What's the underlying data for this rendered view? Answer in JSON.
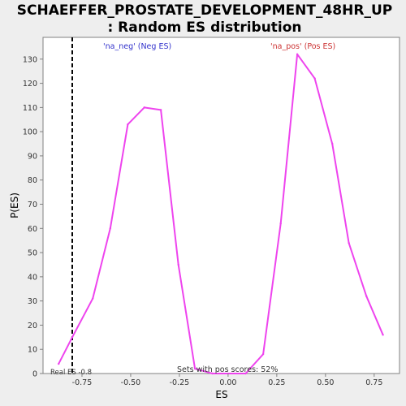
{
  "chart_data": {
    "type": "line",
    "title": "SCHAEFFER_PROSTATE_DEVELOPMENT_48HR_UP",
    "subtitle": ": Random ES distribution",
    "xlabel": "ES",
    "ylabel": "P(ES)",
    "xlim": [
      -0.95,
      0.88
    ],
    "ylim": [
      0,
      139
    ],
    "x_ticks": [
      -0.75,
      -0.5,
      -0.25,
      0.0,
      0.25,
      0.5,
      0.75
    ],
    "x_tick_labels": [
      "-0.75",
      "-0.50",
      "-0.25",
      "0.00",
      "0.25",
      "0.50",
      "0.75"
    ],
    "y_ticks": [
      0,
      10,
      20,
      30,
      40,
      50,
      60,
      70,
      80,
      90,
      100,
      110,
      120,
      130
    ],
    "y_tick_labels": [
      "0",
      "10",
      "20",
      "30",
      "40",
      "50",
      "60",
      "70",
      "80",
      "90",
      "100",
      "110",
      "120",
      "130"
    ],
    "grid": false,
    "series": [
      {
        "color": "#ee44ee",
        "x": [
          -0.87,
          -0.8,
          -0.695,
          -0.605,
          -0.515,
          -0.43,
          -0.345,
          -0.255,
          -0.17,
          -0.08,
          0.09,
          0.18,
          0.27,
          0.355,
          0.445,
          0.535,
          0.62,
          0.71,
          0.795
        ],
        "y": [
          4,
          15,
          31,
          60,
          103,
          110,
          109,
          45,
          2,
          0,
          0,
          8,
          62,
          132,
          122,
          95,
          54,
          32,
          16
        ]
      }
    ],
    "real_es": {
      "value": -0.8,
      "label": "Real ES -0.8",
      "color": "#000000"
    },
    "annotations": [
      {
        "id": "neg",
        "text": "'na_neg' (Neg ES)",
        "color": "#3333cc"
      },
      {
        "id": "pos",
        "text": "'na_pos' (Pos ES)",
        "color": "#cc3333"
      },
      {
        "id": "sets",
        "text": "Sets with pos scores: 52%",
        "color": "#333333"
      }
    ]
  }
}
